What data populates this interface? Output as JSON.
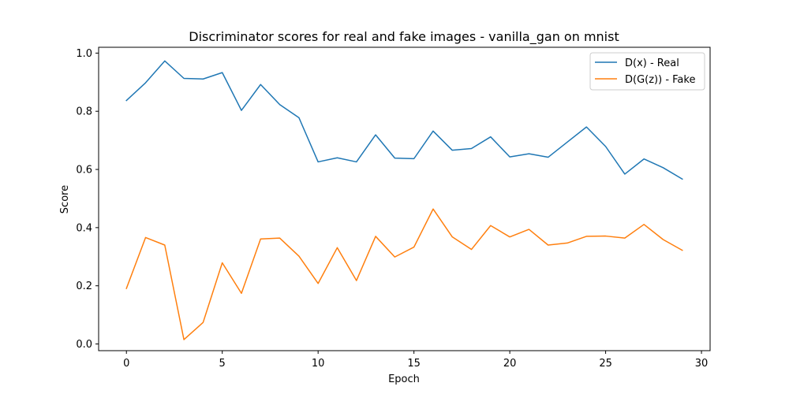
{
  "chart_data": {
    "type": "line",
    "title": "Discriminator scores for real and fake images - vanilla_gan on mnist",
    "xlabel": "Epoch",
    "ylabel": "Score",
    "xlim": [
      -1.45,
      30.45
    ],
    "ylim": [
      -0.023,
      1.02
    ],
    "xticks": [
      0,
      5,
      10,
      15,
      20,
      25,
      30
    ],
    "xtick_labels": [
      "0",
      "5",
      "10",
      "15",
      "20",
      "25",
      "30"
    ],
    "yticks": [
      0.0,
      0.2,
      0.4,
      0.6,
      0.8,
      1.0
    ],
    "ytick_labels": [
      "0.0",
      "0.2",
      "0.4",
      "0.6",
      "0.8",
      "1.0"
    ],
    "grid": false,
    "legend_position": "top-right",
    "x": [
      0,
      1,
      2,
      3,
      4,
      5,
      6,
      7,
      8,
      9,
      10,
      11,
      12,
      13,
      14,
      15,
      16,
      17,
      18,
      19,
      20,
      21,
      22,
      23,
      24,
      25,
      26,
      27,
      28,
      29
    ],
    "series": [
      {
        "name": "D(x) - Real",
        "color": "#1f77b4",
        "values": [
          0.837,
          0.898,
          0.973,
          0.913,
          0.911,
          0.933,
          0.803,
          0.892,
          0.823,
          0.778,
          0.626,
          0.64,
          0.626,
          0.719,
          0.639,
          0.637,
          0.732,
          0.666,
          0.672,
          0.712,
          0.643,
          0.654,
          0.642,
          0.694,
          0.746,
          0.679,
          0.584,
          0.636,
          0.606,
          0.567
        ]
      },
      {
        "name": "D(G(z)) - Fake",
        "color": "#ff7f0e",
        "values": [
          0.191,
          0.366,
          0.34,
          0.015,
          0.074,
          0.279,
          0.174,
          0.361,
          0.364,
          0.302,
          0.208,
          0.331,
          0.218,
          0.37,
          0.299,
          0.333,
          0.464,
          0.368,
          0.325,
          0.407,
          0.368,
          0.394,
          0.34,
          0.347,
          0.37,
          0.371,
          0.364,
          0.411,
          0.359,
          0.322
        ]
      }
    ]
  }
}
